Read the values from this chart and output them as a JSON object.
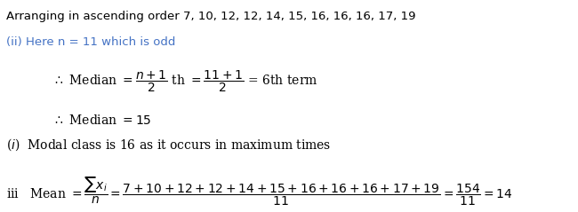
{
  "bg_color": "#ffffff",
  "line1": "Arranging in ascending order 7, 10, 12, 12, 14, 15, 16, 16, 16, 17, 19",
  "line2": "(ii) Here n = 11 which is odd",
  "line1_color": "#000000",
  "line2_color": "#4472c4",
  "text_color": "#000000",
  "figsize": [
    6.5,
    2.39
  ],
  "dpi": 100
}
